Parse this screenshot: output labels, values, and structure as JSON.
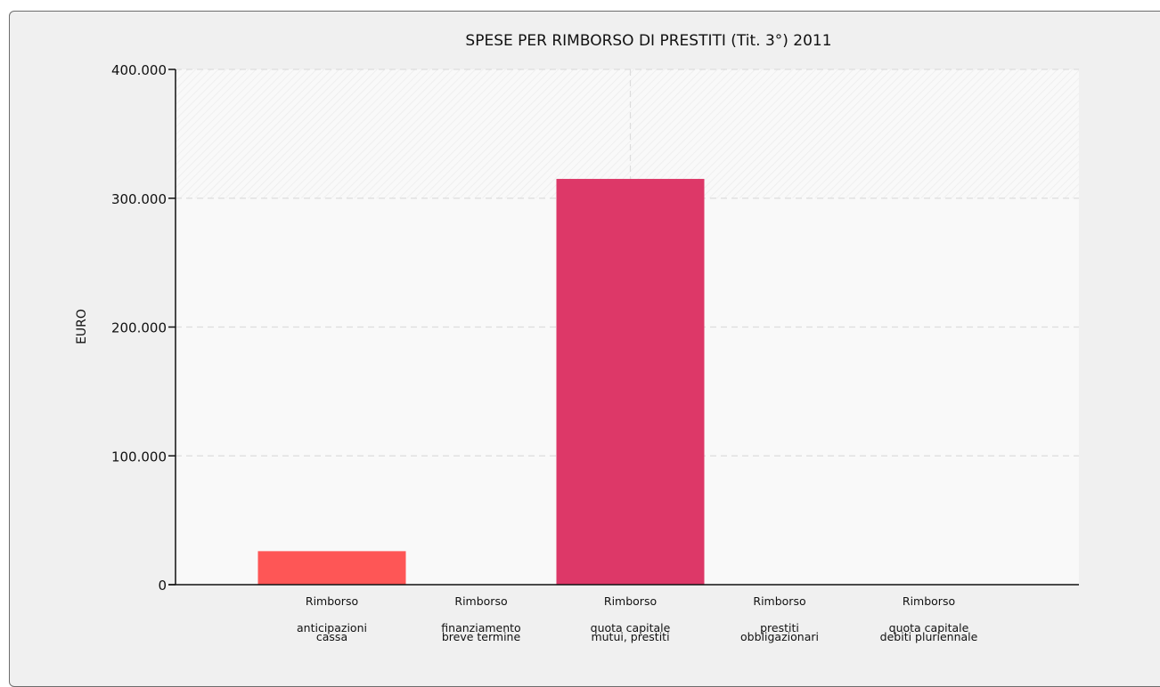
{
  "chart_data": {
    "type": "bar",
    "title": "SPESE PER RIMBORSO DI PRESTITI (Tit. 3°) 2011",
    "xlabel": "",
    "ylabel": "EURO",
    "ylim": [
      0,
      400000
    ],
    "yticks": [
      0,
      100000,
      200000,
      300000,
      400000
    ],
    "ytick_labels": [
      "0",
      "100.000",
      "200.000",
      "300.000",
      "400.000"
    ],
    "categories": [
      [
        "Rimborso",
        "anticipazioni",
        "cassa"
      ],
      [
        "Rimborso",
        "finanziamento",
        "breve termine"
      ],
      [
        "Rimborso",
        "quota capitale",
        "mutui, prestiti"
      ],
      [
        "Rimborso",
        "prestiti",
        "obbligazionari"
      ],
      [
        "Rimborso",
        "quota capitale",
        "debiti pluriennale"
      ]
    ],
    "values": [
      26000,
      0,
      315000,
      0,
      0
    ],
    "colors": [
      "#fe5656",
      "#e34f5f",
      "#dd3868",
      "#c2286e",
      "#a01f6e"
    ],
    "grid": true,
    "legend": "none"
  }
}
